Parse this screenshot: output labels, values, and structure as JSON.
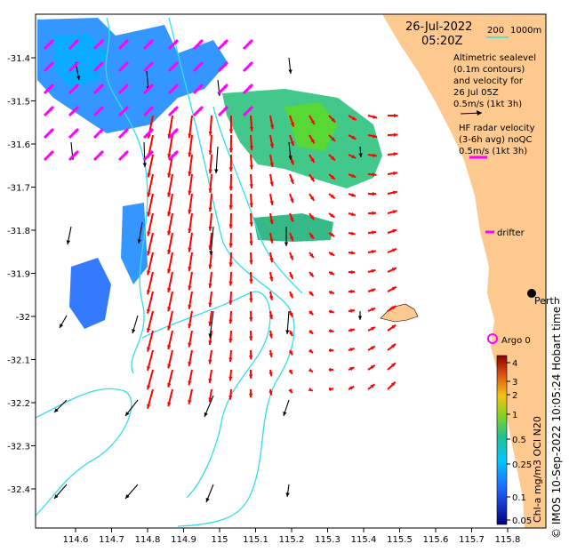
{
  "header": {
    "date": "26-Jul-2022",
    "time": "05:20Z",
    "scale_left": "200",
    "scale_right": "1000m"
  },
  "legend": {
    "sealevel_lines": [
      "Altimetric sealevel",
      "(0.1m contours)",
      "and velocity for",
      "26 Jul 05Z",
      "0.5m/s (1kt 3h)"
    ],
    "hf_lines": [
      "HF radar velocity",
      "(3-6h avg) noQC",
      "0.5m/s (1kt 3h)"
    ],
    "drifter_label": "drifter",
    "argo_label": "Argo 0",
    "city_label": "Perth"
  },
  "axes": {
    "lon_ticks": [
      "114.6",
      "114.7",
      "114.8",
      "114.9",
      "115",
      "115.1",
      "115.2",
      "115.3",
      "115.4",
      "115.5",
      "115.6",
      "115.7",
      "115.8"
    ],
    "lat_ticks": [
      "-31.4",
      "-31.5",
      "-31.6",
      "-31.7",
      "-31.8",
      "-31.9",
      "-32",
      "-32.1",
      "-32.2",
      "-32.3",
      "-32.4"
    ]
  },
  "colorbar": {
    "title": "Chl-a mg/m3 OCI N20",
    "tick_labels": [
      "4",
      "3",
      "2",
      "1",
      "0.5",
      "0.25",
      "0.1",
      "0.05"
    ],
    "colors": [
      "#8b0000",
      "#c0392b",
      "#e67e22",
      "#f1c40f",
      "#7ed321",
      "#1abc9c",
      "#1e90ff",
      "#000080"
    ]
  },
  "credit": "© IMOS 10-Sep-2022 10:05:24 Hobart time",
  "colors": {
    "land": "#fdc98f",
    "contour": "#33dde6",
    "hf_arrow": "#ff0000",
    "drifter": "#ff00ff",
    "altimetry_arrow": "#000000"
  }
}
